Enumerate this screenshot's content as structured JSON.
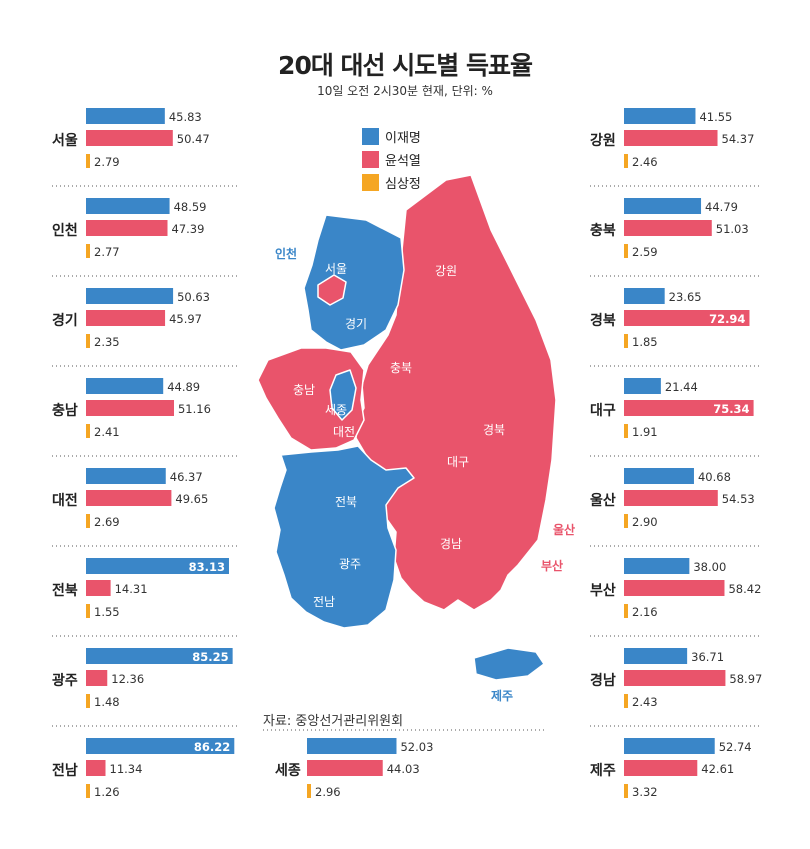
{
  "title": "20대 대선 시도별 득표율",
  "subtitle": "10일 오전 2시30분 현재, 단위: %",
  "source": "자료: 중앙선거관리위원회",
  "colors": {
    "lee": "#3a86c8",
    "yoon": "#e9546b",
    "sim": "#f5a623"
  },
  "legend": [
    {
      "name": "이재명",
      "color": "#3a86c8"
    },
    {
      "name": "윤석열",
      "color": "#e9546b"
    },
    {
      "name": "심상정",
      "color": "#f5a623"
    }
  ],
  "map": {
    "labels": {
      "incheon": "인천",
      "seoul": "서울",
      "gyeonggi": "경기",
      "gangwon": "강원",
      "chungbuk": "충북",
      "chungnam": "충남",
      "sejong": "세종",
      "daejeon": "대전",
      "gyeongbuk": "경북",
      "daegu": "대구",
      "jeonbuk": "전북",
      "gwangju": "광주",
      "jeonnam": "전남",
      "gyeongnam": "경남",
      "ulsan": "울산",
      "busan": "부산",
      "jeju": "제주"
    }
  },
  "chart_data": {
    "type": "bar",
    "series_names": [
      "이재명",
      "윤석열",
      "심상정"
    ],
    "regions": [
      {
        "name": "서울",
        "values": [
          45.83,
          50.47,
          2.79
        ]
      },
      {
        "name": "인천",
        "values": [
          48.59,
          47.39,
          2.77
        ]
      },
      {
        "name": "경기",
        "values": [
          50.63,
          45.97,
          2.35
        ]
      },
      {
        "name": "충남",
        "values": [
          44.89,
          51.16,
          2.41
        ]
      },
      {
        "name": "대전",
        "values": [
          46.37,
          49.65,
          2.69
        ]
      },
      {
        "name": "전북",
        "values": [
          83.13,
          14.31,
          1.55
        ]
      },
      {
        "name": "광주",
        "values": [
          85.25,
          12.36,
          1.48
        ]
      },
      {
        "name": "전남",
        "values": [
          86.22,
          11.34,
          1.26
        ]
      },
      {
        "name": "세종",
        "values": [
          52.03,
          44.03,
          2.96
        ]
      },
      {
        "name": "강원",
        "values": [
          41.55,
          54.37,
          2.46
        ]
      },
      {
        "name": "충북",
        "values": [
          44.79,
          51.03,
          2.59
        ]
      },
      {
        "name": "경북",
        "values": [
          23.65,
          72.94,
          1.85
        ]
      },
      {
        "name": "대구",
        "values": [
          21.44,
          75.34,
          1.91
        ]
      },
      {
        "name": "울산",
        "values": [
          40.68,
          54.53,
          2.9
        ]
      },
      {
        "name": "부산",
        "values": [
          38.0,
          58.42,
          2.16
        ]
      },
      {
        "name": "경남",
        "values": [
          36.71,
          58.97,
          2.43
        ]
      },
      {
        "name": "제주",
        "values": [
          52.74,
          42.61,
          3.32
        ]
      }
    ]
  }
}
